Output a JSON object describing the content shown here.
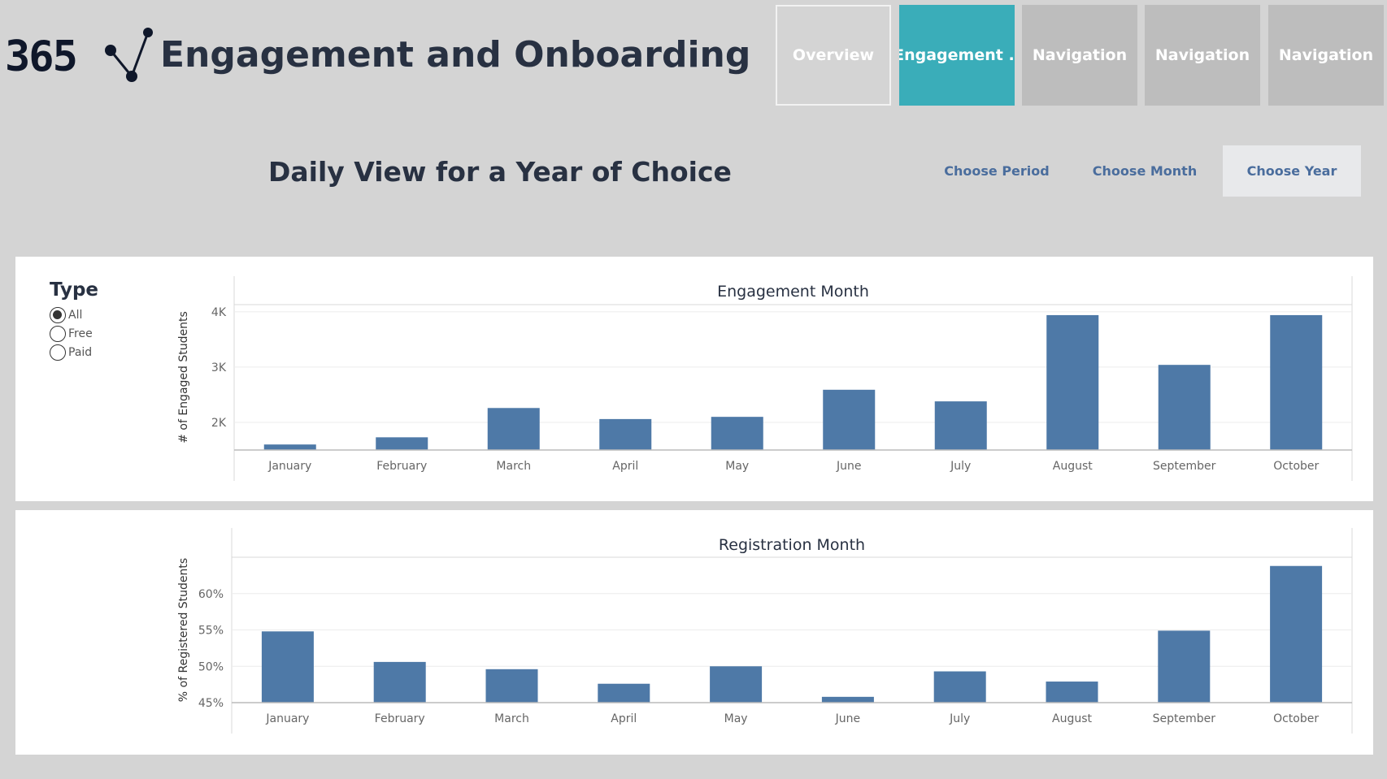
{
  "header": {
    "logo_text": "365",
    "title": "Engagement and Onboarding"
  },
  "nav": [
    {
      "label": "Overview",
      "state": "outline"
    },
    {
      "label": "Engagement ..",
      "state": "active"
    },
    {
      "label": "Navigation",
      "state": "normal"
    },
    {
      "label": "Navigation",
      "state": "normal"
    },
    {
      "label": "Navigation",
      "state": "normal"
    }
  ],
  "section_title": "Daily View for a Year of Choice",
  "period_buttons": [
    {
      "label": "Choose Period",
      "active": false
    },
    {
      "label": "Choose Month",
      "active": false
    },
    {
      "label": "Choose Year",
      "active": true
    }
  ],
  "filter": {
    "title": "Type",
    "options": [
      {
        "label": "All",
        "checked": true
      },
      {
        "label": "Free",
        "checked": false
      },
      {
        "label": "Paid",
        "checked": false
      }
    ]
  },
  "colors": {
    "bar": "#4e79a7",
    "accent": "#3aadb9",
    "text": "#283142",
    "link": "#4a6d9d"
  },
  "chart_data": [
    {
      "type": "bar",
      "title": "Engagement Month",
      "ylabel": "# of Engaged Students",
      "categories": [
        "January",
        "February",
        "March",
        "April",
        "May",
        "June",
        "July",
        "August",
        "September",
        "October"
      ],
      "values": [
        1600,
        1730,
        2260,
        2060,
        2100,
        2590,
        2380,
        3940,
        3040,
        3940
      ],
      "ylim": [
        1500,
        4130
      ],
      "yticks": [
        {
          "v": 2000,
          "label": "2K"
        },
        {
          "v": 3000,
          "label": "3K"
        },
        {
          "v": 4000,
          "label": "4K"
        }
      ],
      "grid": true
    },
    {
      "type": "bar",
      "title": "Registration Month",
      "ylabel": "% of Registered Students",
      "categories": [
        "January",
        "February",
        "March",
        "April",
        "May",
        "June",
        "July",
        "August",
        "September",
        "October"
      ],
      "values": [
        54.8,
        50.6,
        49.6,
        47.6,
        50.0,
        45.8,
        49.3,
        47.9,
        54.9,
        63.8
      ],
      "ylim": [
        45,
        65
      ],
      "yticks": [
        {
          "v": 45,
          "label": "45%"
        },
        {
          "v": 50,
          "label": "50%"
        },
        {
          "v": 55,
          "label": "55%"
        },
        {
          "v": 60,
          "label": "60%"
        }
      ],
      "grid": true
    }
  ]
}
